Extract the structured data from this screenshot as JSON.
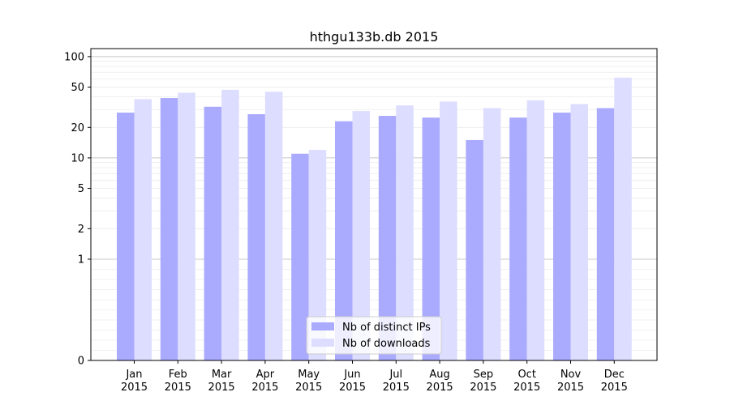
{
  "chart_data": {
    "type": "bar",
    "title": "hthgu133b.db 2015",
    "xlabel": "",
    "ylabel": "",
    "yscale": "symlog",
    "ylim": [
      0,
      120
    ],
    "y_ticks": [
      0,
      1,
      2,
      5,
      10,
      20,
      50,
      100
    ],
    "y_tick_labels": [
      "0",
      "1",
      "2",
      "5",
      "10",
      "20",
      "50",
      "100"
    ],
    "grid": true,
    "legend_position": "bottom-center",
    "categories": [
      "Jan\n2015",
      "Feb\n2015",
      "Mar\n2015",
      "Apr\n2015",
      "May\n2015",
      "Jun\n2015",
      "Jul\n2015",
      "Aug\n2015",
      "Sep\n2015",
      "Oct\n2015",
      "Nov\n2015",
      "Dec\n2015"
    ],
    "series": [
      {
        "name": "Nb of distinct IPs",
        "color": "#aaaaff",
        "values": [
          28,
          39,
          32,
          27,
          11,
          23,
          26,
          25,
          15,
          25,
          28,
          31
        ]
      },
      {
        "name": "Nb of downloads",
        "color": "#ddddff",
        "values": [
          38,
          44,
          47,
          45,
          12,
          29,
          33,
          36,
          31,
          37,
          34,
          62
        ]
      }
    ]
  }
}
